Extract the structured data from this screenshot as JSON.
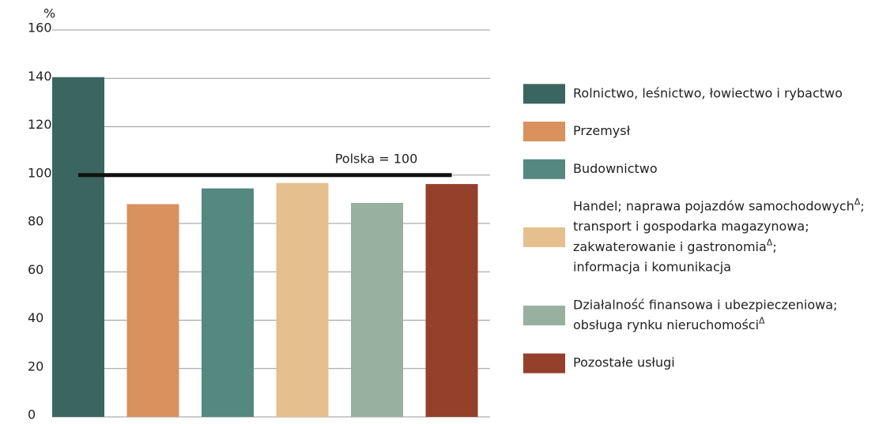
{
  "chart_data": {
    "type": "bar",
    "y_unit": "%",
    "categories": [
      [
        "Rolnictwo, leśnictwo, łowiectwo i rybactwo"
      ],
      [
        "Przemysł"
      ],
      [
        "Budownictwo"
      ],
      [
        "Handel; naprawa pojazdów samochodowychΔ;",
        "transport i gospodarka magazynowa;",
        "zakwaterowanie i gastronomiaΔ;",
        "informacja i komunikacja"
      ],
      [
        "Działalność finansowa i ubezpieczeniowa;",
        "obsługa rynku nieruchomościΔ"
      ],
      [
        "Pozostałe usługi"
      ]
    ],
    "values": [
      140.5,
      88,
      94.5,
      96.7,
      88.5,
      96.3
    ],
    "colors": [
      "#3a665f",
      "#d9915e",
      "#55887f",
      "#e6bf8e",
      "#98b09f",
      "#94402b"
    ],
    "ylim": [
      0,
      160
    ],
    "yticks": [
      0,
      20,
      40,
      60,
      80,
      100,
      120,
      140,
      160
    ],
    "grid": true,
    "reference_line": {
      "value": 100,
      "label": "Polska = 100"
    },
    "legend": "right"
  }
}
